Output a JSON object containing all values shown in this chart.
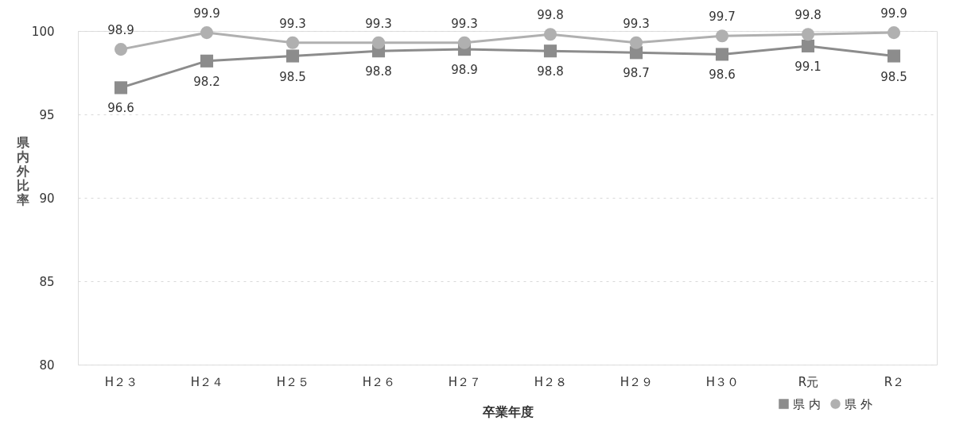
{
  "chart_data": {
    "type": "line",
    "xlabel": "卒業年度",
    "ylabel": "県内外比率",
    "categories": [
      "H２３",
      "H２４",
      "H２５",
      "H２６",
      "H２７",
      "H２８",
      "H２９",
      "H３０",
      "R元",
      "R２"
    ],
    "series": [
      {
        "name": "県 内",
        "color": "#8c8c8c",
        "marker": "square",
        "values": [
          96.6,
          98.2,
          98.5,
          98.8,
          98.9,
          98.8,
          98.7,
          98.6,
          99.1,
          98.5
        ]
      },
      {
        "name": "県 外",
        "color": "#b0b0b0",
        "marker": "circle",
        "values": [
          98.9,
          99.9,
          99.3,
          99.3,
          99.3,
          99.8,
          99.3,
          99.7,
          99.8,
          99.9
        ]
      }
    ],
    "ylim": [
      80,
      100
    ],
    "yticks": [
      80,
      85,
      90,
      95,
      100
    ],
    "grid": "y",
    "legend": "bottom right",
    "data_labels": true,
    "line_style": "solid"
  }
}
